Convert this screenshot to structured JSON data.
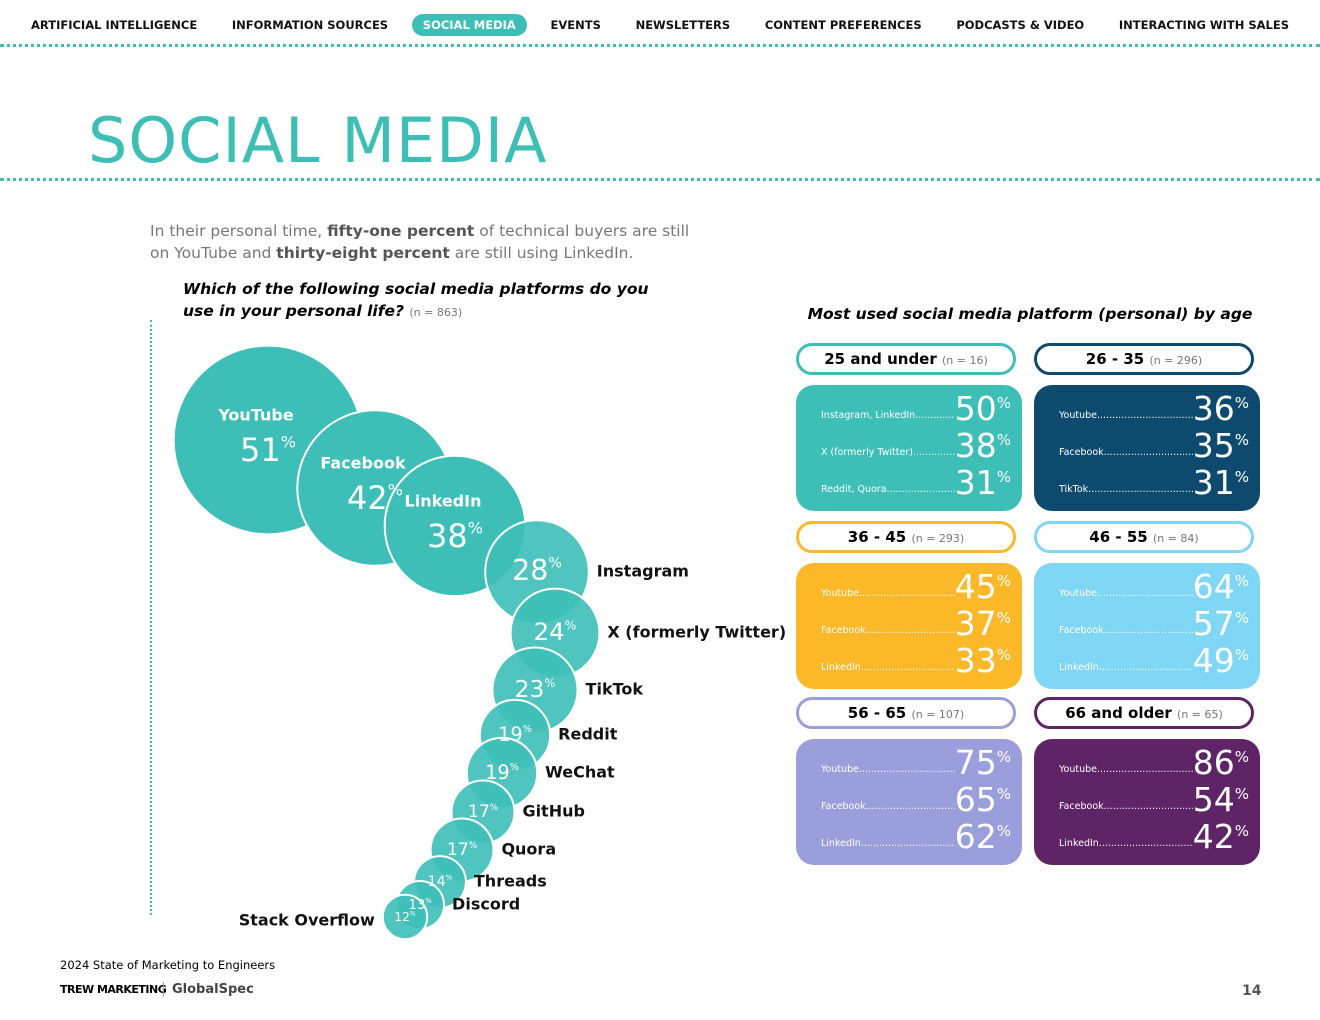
{
  "nav": {
    "items": [
      "ARTIFICIAL INTELLIGENCE",
      "INFORMATION SOURCES",
      "SOCIAL MEDIA",
      "EVENTS",
      "NEWSLETTERS",
      "CONTENT PREFERENCES",
      "PODCASTS & VIDEO",
      "INTERACTING WITH SALES"
    ],
    "active": 2
  },
  "header": {
    "title": "SOCIAL MEDIA"
  },
  "intro": [
    {
      "text": "In their personal time, ",
      "bold": false
    },
    {
      "text": "fifty-one percent",
      "bold": true
    },
    {
      "text": " of technical buyers are still on YouTube and ",
      "bold": false
    },
    {
      "text": "thirty-eight percent",
      "bold": true
    },
    {
      "text": " are still using LinkedIn.",
      "bold": false
    }
  ],
  "question": {
    "text": "Which of the following social media platforms do you use in your personal life?",
    "n": "(n = 863)"
  },
  "bubbles": [
    {
      "name": "YouTube",
      "value": 51,
      "unit": "%"
    },
    {
      "name": "Facebook",
      "value": 42,
      "unit": "%"
    },
    {
      "name": "LinkedIn",
      "value": 38,
      "unit": "%"
    },
    {
      "name": "Instagram",
      "value": 28,
      "unit": "%"
    },
    {
      "name": "X (formerly Twitter)",
      "value": 24,
      "unit": "%"
    },
    {
      "name": "TikTok",
      "value": 23,
      "unit": "%"
    },
    {
      "name": "Reddit",
      "value": 19,
      "unit": "%"
    },
    {
      "name": "WeChat",
      "value": 19,
      "unit": "%"
    },
    {
      "name": "GitHub",
      "value": 17,
      "unit": "%"
    },
    {
      "name": "Quora",
      "value": 17,
      "unit": "%"
    },
    {
      "name": "Threads",
      "value": 14,
      "unit": "%"
    },
    {
      "name": "Discord",
      "value": 13,
      "unit": "%"
    },
    {
      "name": "Stack Overflow",
      "value": 12,
      "unit": "%"
    }
  ],
  "bubble_color": "#3dbfb8",
  "age": {
    "title": "Most used social media platform (personal) by age",
    "groups": [
      {
        "label": "25 and under",
        "n": "(n = 16)",
        "color": "#3dbfb8",
        "rows": [
          {
            "label": "Instagram, LinkedIn",
            "value": 50,
            "unit": "%"
          },
          {
            "label": "X (formerly Twitter)",
            "value": 38,
            "unit": "%"
          },
          {
            "label": "Reddit, Quora",
            "value": 31,
            "unit": "%"
          }
        ]
      },
      {
        "label": "26 - 35",
        "n": "(n = 296)",
        "color": "#0d4a6e",
        "rows": [
          {
            "label": "Youtube",
            "value": 36,
            "unit": "%"
          },
          {
            "label": "Facebook",
            "value": 35,
            "unit": "%"
          },
          {
            "label": "TikTok",
            "value": 31,
            "unit": "%"
          }
        ]
      },
      {
        "label": "36 - 45",
        "n": "(n = 293)",
        "color": "#fbb829",
        "rows": [
          {
            "label": "Youtube",
            "value": 45,
            "unit": "%"
          },
          {
            "label": "Facebook",
            "value": 37,
            "unit": "%"
          },
          {
            "label": "LinkedIn",
            "value": 33,
            "unit": "%"
          }
        ]
      },
      {
        "label": "46 - 55",
        "n": "(n = 84)",
        "color": "#7fd6f5",
        "rows": [
          {
            "label": "Youtube",
            "value": 64,
            "unit": "%"
          },
          {
            "label": "Facebook",
            "value": 57,
            "unit": "%"
          },
          {
            "label": "LinkedIn",
            "value": 49,
            "unit": "%"
          }
        ]
      },
      {
        "label": "56 - 65",
        "n": "(n = 107)",
        "color": "#9a9edb",
        "rows": [
          {
            "label": "Youtube",
            "value": 75,
            "unit": "%"
          },
          {
            "label": "Facebook",
            "value": 65,
            "unit": "%"
          },
          {
            "label": "LinkedIn",
            "value": 62,
            "unit": "%"
          }
        ]
      },
      {
        "label": "66 and older",
        "n": "(n = 65)",
        "color": "#5e2466",
        "rows": [
          {
            "label": "Youtube",
            "value": 86,
            "unit": "%"
          },
          {
            "label": "Facebook",
            "value": 54,
            "unit": "%"
          },
          {
            "label": "LinkedIn",
            "value": 42,
            "unit": "%"
          }
        ]
      }
    ]
  },
  "footer": {
    "report": "2024 State of Marketing to Engineers",
    "logo1": "TREW MARKETING",
    "logo2": "GlobalSpec",
    "page": "14"
  }
}
